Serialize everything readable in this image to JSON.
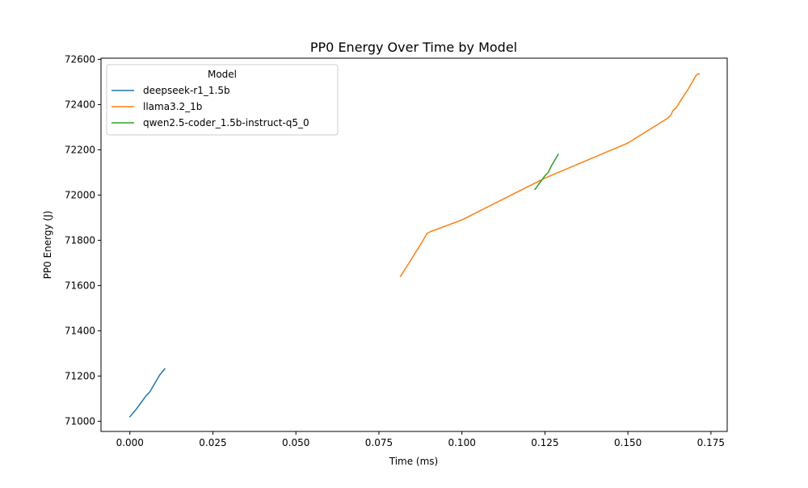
{
  "chart_data": {
    "type": "line",
    "title": "PP0 Energy Over Time by Model",
    "xlabel": "Time (ms)",
    "ylabel": "PP0 Energy (J)",
    "xlim": [
      -0.0087,
      0.1799
    ],
    "ylim": [
      70955,
      72605
    ],
    "x_ticks": [
      0.0,
      0.025,
      0.05,
      0.075,
      0.1,
      0.125,
      0.15,
      0.175
    ],
    "x_tick_labels": [
      "0.000",
      "0.025",
      "0.050",
      "0.075",
      "0.100",
      "0.125",
      "0.150",
      "0.175"
    ],
    "y_ticks": [
      71000,
      71200,
      71400,
      71600,
      71800,
      72000,
      72200,
      72400,
      72600
    ],
    "y_tick_labels": [
      "71000",
      "71200",
      "71400",
      "71600",
      "71800",
      "72000",
      "72200",
      "72400",
      "72600"
    ],
    "grid": false,
    "legend": {
      "title": "Model",
      "position": "upper-left"
    },
    "series": [
      {
        "name": "deepseek-r1_1.5b",
        "color": "#1f77b4",
        "points": [
          [
            0.0,
            71020
          ],
          [
            0.002,
            71055
          ],
          [
            0.004,
            71095
          ],
          [
            0.005,
            71115
          ],
          [
            0.006,
            71130
          ],
          [
            0.007,
            71155
          ],
          [
            0.008,
            71180
          ],
          [
            0.009,
            71205
          ],
          [
            0.0105,
            71232
          ]
        ]
      },
      {
        "name": "llama3.2_1b",
        "color": "#ff7f0e",
        "points": [
          [
            0.0815,
            71640
          ],
          [
            0.083,
            71675
          ],
          [
            0.0845,
            71710
          ],
          [
            0.086,
            71745
          ],
          [
            0.0875,
            71780
          ],
          [
            0.0895,
            71830
          ],
          [
            0.0905,
            71838
          ],
          [
            0.1,
            71890
          ],
          [
            0.125,
            72075
          ],
          [
            0.15,
            72230
          ],
          [
            0.162,
            72340
          ],
          [
            0.163,
            72355
          ],
          [
            0.1635,
            72372
          ],
          [
            0.1645,
            72385
          ],
          [
            0.166,
            72420
          ],
          [
            0.168,
            72465
          ],
          [
            0.169,
            72490
          ],
          [
            0.1705,
            72528
          ],
          [
            0.171,
            72535
          ],
          [
            0.1715,
            72535
          ]
        ]
      },
      {
        "name": "qwen2.5-coder_1.5b-instruct-q5_0",
        "color": "#2ca02c",
        "points": [
          [
            0.122,
            72025
          ],
          [
            0.1235,
            72055
          ],
          [
            0.125,
            72085
          ],
          [
            0.126,
            72100
          ],
          [
            0.127,
            72130
          ],
          [
            0.128,
            72155
          ],
          [
            0.129,
            72180
          ]
        ]
      }
    ]
  }
}
